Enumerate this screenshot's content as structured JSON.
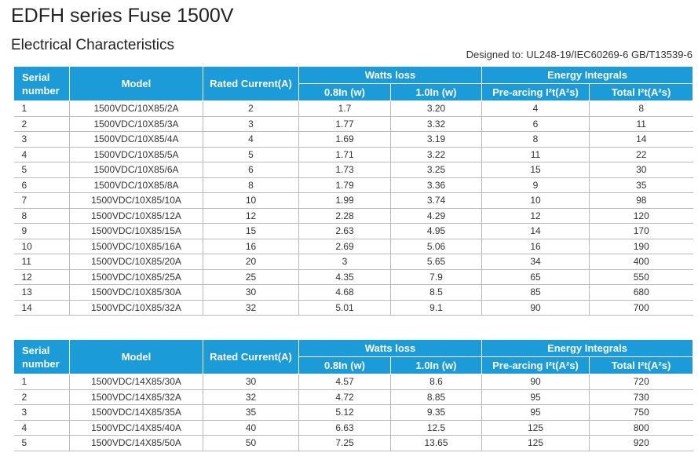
{
  "title": "EDFH series Fuse 1500V",
  "subtitle": "Electrical Characteristics",
  "designed_to": "Designed to: UL248-19/IEC60269-6 GB/T13539-6",
  "header": {
    "serial": "Serial number",
    "model": "Model",
    "rated": "Rated Current(A)",
    "watts": "Watts loss",
    "w08": "0.8In (w)",
    "w10": "1.0In (w)",
    "energy": "Energy Integrals",
    "pre": "Pre-arcing I²t(A²s)",
    "total": "Total I²t(A²s)"
  },
  "colors": {
    "header_bg": "#1b9bd7"
  },
  "table1": [
    [
      "1",
      "1500VDC/10X85/2A",
      "2",
      "1.7",
      "3.20",
      "4",
      "8"
    ],
    [
      "2",
      "1500VDC/10X85/3A",
      "3",
      "1.77",
      "3.32",
      "6",
      "11"
    ],
    [
      "3",
      "1500VDC/10X85/4A",
      "4",
      "1.69",
      "3.19",
      "8",
      "14"
    ],
    [
      "4",
      "1500VDC/10X85/5A",
      "5",
      "1.71",
      "3.22",
      "11",
      "22"
    ],
    [
      "5",
      "1500VDC/10X85/6A",
      "6",
      "1.73",
      "3.25",
      "15",
      "30"
    ],
    [
      "6",
      "1500VDC/10X85/8A",
      "8",
      "1.79",
      "3.36",
      "9",
      "35"
    ],
    [
      "7",
      "1500VDC/10X85/10A",
      "10",
      "1.99",
      "3.74",
      "10",
      "98"
    ],
    [
      "8",
      "1500VDC/10X85/12A",
      "12",
      "2.28",
      "4.29",
      "12",
      "120"
    ],
    [
      "9",
      "1500VDC/10X85/15A",
      "15",
      "2.63",
      "4.95",
      "14",
      "170"
    ],
    [
      "10",
      "1500VDC/10X85/16A",
      "16",
      "2.69",
      "5.06",
      "16",
      "190"
    ],
    [
      "11",
      "1500VDC/10X85/20A",
      "20",
      "3",
      "5.65",
      "34",
      "400"
    ],
    [
      "12",
      "1500VDC/10X85/25A",
      "25",
      "4.35",
      "7.9",
      "65",
      "550"
    ],
    [
      "13",
      "1500VDC/10X85/30A",
      "30",
      "4.68",
      "8.5",
      "85",
      "680"
    ],
    [
      "14",
      "1500VDC/10X85/32A",
      "32",
      "5.01",
      "9.1",
      "90",
      "700"
    ]
  ],
  "table2": [
    [
      "1",
      "1500VDC/14X85/30A",
      "30",
      "4.57",
      "8.6",
      "90",
      "720"
    ],
    [
      "2",
      "1500VDC/14X85/32A",
      "32",
      "4.72",
      "8.85",
      "95",
      "730"
    ],
    [
      "3",
      "1500VDC/14X85/35A",
      "35",
      "5.12",
      "9.35",
      "95",
      "750"
    ],
    [
      "4",
      "1500VDC/14X85/40A",
      "40",
      "6.63",
      "12.5",
      "125",
      "800"
    ],
    [
      "5",
      "1500VDC/14X85/50A",
      "50",
      "7.25",
      "13.65",
      "125",
      "920"
    ]
  ]
}
